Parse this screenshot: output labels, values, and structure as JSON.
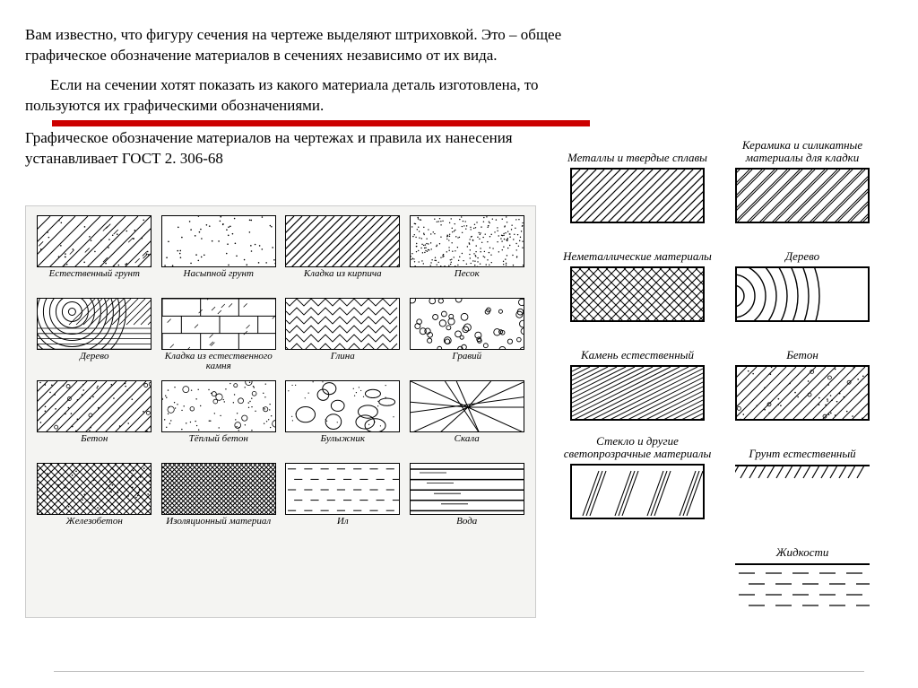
{
  "text": {
    "p1": "Вам известно, что фигуру сечения на чертеже выделяют штриховкой. Это – общее графическое обозначение материалов в сечениях независимо от их вида.",
    "p2": "Если на сечении хотят показать из какого материала деталь изготовлена, то пользуются их графическими обозначениями.",
    "p3": "Графическое обозначение материалов на чертежах и правила их нанесения устанавливает ГОСТ 2. 306-68"
  },
  "left_grid": {
    "cols": 4,
    "swatch_w": 128,
    "swatch_h": 58,
    "border_color": "#000000",
    "bg_color": "#f4f4f2",
    "caption_fontsize": 11,
    "caption_style": "italic",
    "items": [
      {
        "label": "Естественный грунт",
        "pattern": "soil"
      },
      {
        "label": "Насыпной грунт",
        "pattern": "dots-sparse"
      },
      {
        "label": "Кладка из кирпича",
        "pattern": "hatch45"
      },
      {
        "label": "Песок",
        "pattern": "dots-dense"
      },
      {
        "label": "Дерево",
        "pattern": "wood"
      },
      {
        "label": "Кладка из естественного камня",
        "pattern": "stone-blocks"
      },
      {
        "label": "Глина",
        "pattern": "zigzag"
      },
      {
        "label": "Гравий",
        "pattern": "circles"
      },
      {
        "label": "Бетон",
        "pattern": "concrete"
      },
      {
        "label": "Тёплый бетон",
        "pattern": "warm-concrete"
      },
      {
        "label": "Булыжник",
        "pattern": "cobble"
      },
      {
        "label": "Скала",
        "pattern": "rock"
      },
      {
        "label": "Железобетон",
        "pattern": "rc"
      },
      {
        "label": "Изоляционный материал",
        "pattern": "crosshatch-dense"
      },
      {
        "label": "Ил",
        "pattern": "dashes"
      },
      {
        "label": "Вода",
        "pattern": "water"
      }
    ]
  },
  "right_grid": {
    "cols": 2,
    "swatch_w": 150,
    "swatch_h": 62,
    "border_color": "#000000",
    "caption_fontsize": 13,
    "caption_style": "italic",
    "items": [
      {
        "label": "Металлы и твердые сплавы",
        "pattern": "hatch45"
      },
      {
        "label": "Керамика и силикатные материалы для кладки",
        "pattern": "hatch45-double"
      },
      {
        "label": "Неметаллические материалы",
        "pattern": "crosshatch"
      },
      {
        "label": "Дерево",
        "pattern": "wood-arcs"
      },
      {
        "label": "Камень естественный",
        "pattern": "hatch-shallow"
      },
      {
        "label": "Бетон",
        "pattern": "concrete"
      },
      {
        "label": "Стекло и другие светопрозрачные материалы",
        "pattern": "glass"
      },
      {
        "label": "Грунт естественный",
        "pattern": "ground-top"
      },
      {
        "label": "",
        "pattern": ""
      },
      {
        "label": "Жидкости",
        "pattern": "liquid"
      }
    ]
  },
  "colors": {
    "underline": "#cc0000",
    "stroke": "#000000",
    "bg": "#ffffff"
  }
}
